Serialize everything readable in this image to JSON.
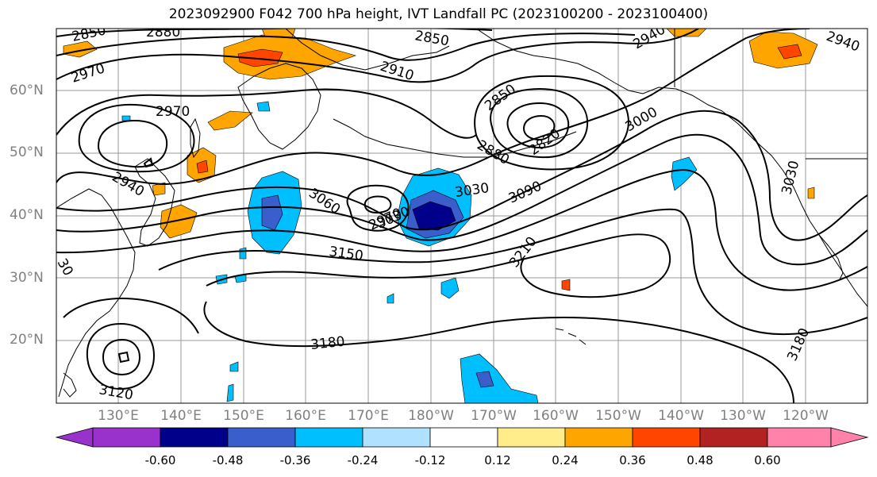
{
  "title": "2023092900 F042 700 hPa height, IVT Landfall PC (2023100200 - 2023100400)",
  "lat_labels": [
    "60°N",
    "50°N",
    "40°N",
    "30°N",
    "20°N"
  ],
  "lon_labels": [
    "130°E",
    "140°E",
    "150°E",
    "160°E",
    "170°E",
    "180°W",
    "170°W",
    "160°W",
    "150°W",
    "140°W",
    "130°W",
    "120°W"
  ],
  "contour_labels": [
    "2850",
    "2880",
    "2850",
    "2910",
    "2940",
    "2940",
    "2970",
    "2970",
    "2850",
    "2880",
    "2820",
    "3000",
    "3030",
    "2940",
    "3060",
    "2970",
    "3030",
    "3090",
    "3030",
    "3150",
    "3210",
    "30",
    "3180",
    "3180",
    "3120"
  ],
  "colorbar": {
    "ticks": [
      "-0.60",
      "-0.48",
      "-0.36",
      "-0.24",
      "-0.12",
      "0.12",
      "0.24",
      "0.36",
      "0.48",
      "0.60"
    ],
    "colors": [
      "#9932CC",
      "#00008B",
      "#3A5FCD",
      "#00BFFF",
      "#B0E2FF",
      "#FFFFFF",
      "#FFEC8B",
      "#FFA500",
      "#FF4500",
      "#B22222",
      "#FF82AB"
    ]
  }
}
